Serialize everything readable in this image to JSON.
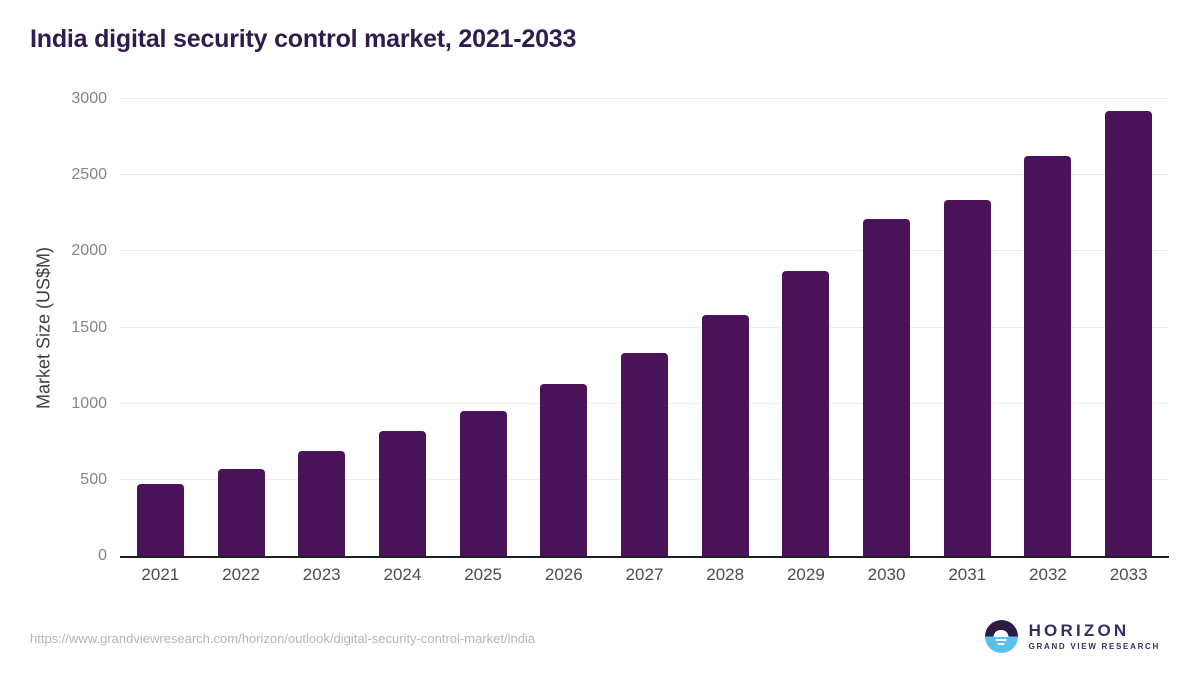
{
  "header": {
    "title": "India digital security control market, 2021-2033"
  },
  "chart_data": {
    "type": "bar",
    "title": "India digital security control market, 2021-2033",
    "categories": [
      "2021",
      "2022",
      "2023",
      "2024",
      "2025",
      "2026",
      "2027",
      "2028",
      "2029",
      "2030",
      "2031",
      "2032",
      "2033"
    ],
    "values": [
      475,
      570,
      690,
      820,
      955,
      1130,
      1335,
      1580,
      1870,
      2210,
      2340,
      2625,
      2920
    ],
    "xlabel": "",
    "ylabel": "Market Size (US$M)",
    "ylim": [
      0,
      3000
    ],
    "yticks": [
      0,
      500,
      1000,
      1500,
      2000,
      2500,
      3000
    ],
    "grid": true,
    "legend": "none",
    "bar_color": "#4a1259"
  },
  "footer": {
    "source_url": "https://www.grandviewresearch.com/horizon/outlook/digital-security-control-market/india"
  },
  "logo": {
    "name": "HORIZON",
    "subtitle": "GRAND VIEW RESEARCH",
    "icon": "horizon-sun-icon",
    "purple": "#2e1a47",
    "blue": "#5ac1ef"
  },
  "colors": {
    "bar": "#4a1259",
    "title_text": "#2f1b4e",
    "grid_line": "#ececec",
    "axis_line": "#1f1f1f",
    "y_tick_text": "#858585",
    "x_tick_text": "#4d4d4d",
    "url_text": "#b5b5b5"
  }
}
